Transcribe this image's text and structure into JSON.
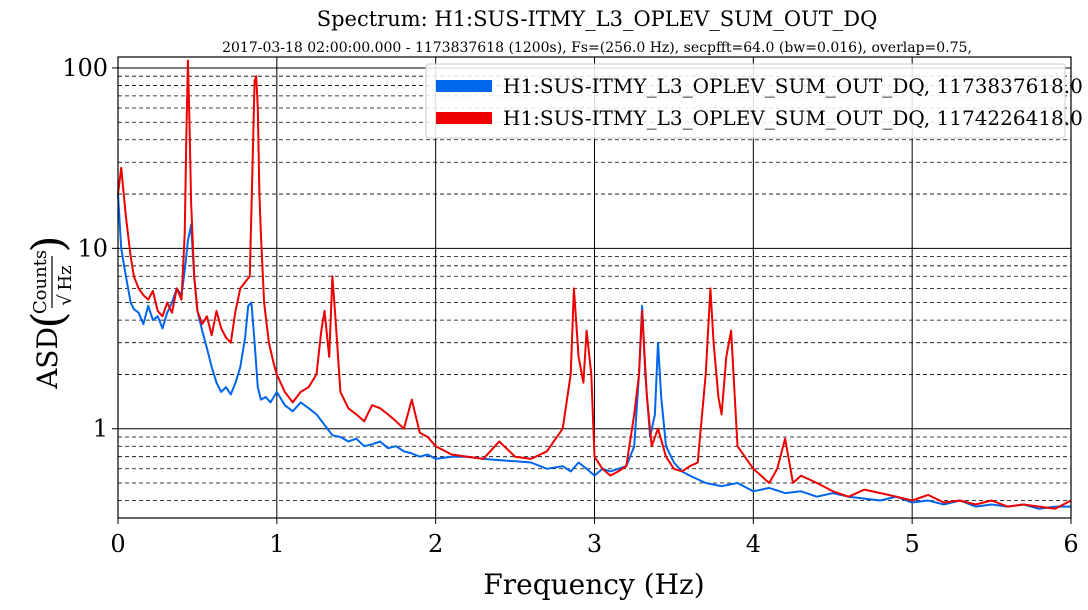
{
  "chart_data": {
    "type": "line",
    "title": "Spectrum: H1:SUS-ITMY_L3_OPLEV_SUM_OUT_DQ",
    "subtitle": "2017-03-18 02:00:00.000 - 1173837618 (1200s), Fs=(256.0 Hz), secpfft=64.0 (bw=0.016), overlap=0.75,",
    "xlabel": "Frequency (Hz)",
    "ylabel_main": "ASD",
    "ylabel_num": "Counts",
    "ylabel_den": "Hz",
    "xlim": [
      0,
      6
    ],
    "ylim": [
      0.32,
      115
    ],
    "yscale": "log",
    "grid": true,
    "legend_placement": "top-right",
    "x_ticks": [
      0,
      1,
      2,
      3,
      4,
      5,
      6
    ],
    "x_tick_labels": [
      "0",
      "1",
      "2",
      "3",
      "4",
      "5",
      "6"
    ],
    "y_ticks": [
      1,
      10,
      100
    ],
    "y_tick_labels": [
      "1",
      "10",
      "100"
    ],
    "series": [
      {
        "name": "H1:SUS-ITMY_L3_OPLEV_SUM_OUT_DQ, 1173837618.0",
        "color": "#0066ee",
        "x": [
          0,
          0.02,
          0.05,
          0.08,
          0.1,
          0.13,
          0.16,
          0.19,
          0.22,
          0.25,
          0.28,
          0.31,
          0.34,
          0.37,
          0.4,
          0.42,
          0.44,
          0.46,
          0.48,
          0.5,
          0.53,
          0.56,
          0.59,
          0.62,
          0.65,
          0.68,
          0.71,
          0.74,
          0.77,
          0.8,
          0.82,
          0.84,
          0.86,
          0.88,
          0.9,
          0.93,
          0.96,
          1.0,
          1.05,
          1.1,
          1.15,
          1.2,
          1.25,
          1.3,
          1.35,
          1.4,
          1.45,
          1.5,
          1.55,
          1.6,
          1.65,
          1.7,
          1.75,
          1.8,
          1.85,
          1.9,
          1.95,
          2.0,
          2.1,
          2.2,
          2.3,
          2.4,
          2.5,
          2.6,
          2.7,
          2.8,
          2.85,
          2.9,
          2.95,
          3.0,
          3.05,
          3.1,
          3.15,
          3.2,
          3.25,
          3.28,
          3.3,
          3.32,
          3.35,
          3.38,
          3.4,
          3.42,
          3.45,
          3.5,
          3.55,
          3.6,
          3.7,
          3.8,
          3.9,
          4.0,
          4.1,
          4.2,
          4.3,
          4.4,
          4.5,
          4.6,
          4.7,
          4.8,
          4.9,
          5.0,
          5.1,
          5.2,
          5.3,
          5.4,
          5.5,
          5.6,
          5.7,
          5.8,
          5.9,
          6.0
        ],
        "values": [
          20,
          10,
          7,
          5,
          4.6,
          4.4,
          3.8,
          4.8,
          4.0,
          4.2,
          3.6,
          4.4,
          5.0,
          6.0,
          5.5,
          7.5,
          11,
          13.5,
          7,
          4.5,
          3.5,
          2.8,
          2.2,
          1.8,
          1.6,
          1.7,
          1.55,
          1.8,
          2.2,
          3.2,
          4.8,
          5.0,
          3.0,
          1.7,
          1.45,
          1.5,
          1.4,
          1.6,
          1.35,
          1.25,
          1.4,
          1.3,
          1.2,
          1.05,
          0.92,
          0.9,
          0.85,
          0.88,
          0.8,
          0.82,
          0.85,
          0.78,
          0.8,
          0.75,
          0.73,
          0.7,
          0.72,
          0.68,
          0.7,
          0.7,
          0.68,
          0.67,
          0.66,
          0.65,
          0.6,
          0.62,
          0.58,
          0.65,
          0.6,
          0.55,
          0.6,
          0.58,
          0.6,
          0.62,
          0.8,
          2.0,
          4.8,
          2.0,
          0.9,
          1.2,
          3.0,
          1.5,
          0.8,
          0.65,
          0.58,
          0.55,
          0.5,
          0.48,
          0.5,
          0.45,
          0.47,
          0.44,
          0.45,
          0.42,
          0.44,
          0.42,
          0.41,
          0.4,
          0.42,
          0.39,
          0.4,
          0.38,
          0.4,
          0.37,
          0.38,
          0.37,
          0.38,
          0.36,
          0.37,
          0.37
        ]
      },
      {
        "name": "H1:SUS-ITMY_L3_OPLEV_SUM_OUT_DQ, 1174226418.0",
        "color": "#ee0000",
        "x": [
          0,
          0.02,
          0.05,
          0.08,
          0.1,
          0.13,
          0.16,
          0.19,
          0.22,
          0.25,
          0.28,
          0.31,
          0.34,
          0.37,
          0.4,
          0.42,
          0.43,
          0.44,
          0.45,
          0.46,
          0.48,
          0.5,
          0.53,
          0.56,
          0.59,
          0.62,
          0.65,
          0.68,
          0.71,
          0.74,
          0.77,
          0.8,
          0.83,
          0.86,
          0.87,
          0.88,
          0.89,
          0.9,
          0.92,
          0.95,
          0.98,
          1.0,
          1.05,
          1.1,
          1.15,
          1.2,
          1.25,
          1.28,
          1.3,
          1.33,
          1.35,
          1.37,
          1.4,
          1.45,
          1.5,
          1.55,
          1.6,
          1.65,
          1.7,
          1.75,
          1.8,
          1.85,
          1.9,
          1.95,
          2.0,
          2.1,
          2.2,
          2.3,
          2.4,
          2.5,
          2.6,
          2.7,
          2.8,
          2.85,
          2.87,
          2.9,
          2.93,
          2.95,
          2.98,
          3.0,
          3.05,
          3.1,
          3.15,
          3.2,
          3.25,
          3.28,
          3.3,
          3.33,
          3.36,
          3.4,
          3.45,
          3.5,
          3.55,
          3.6,
          3.65,
          3.7,
          3.73,
          3.75,
          3.78,
          3.8,
          3.83,
          3.86,
          3.9,
          4.0,
          4.1,
          4.15,
          4.2,
          4.25,
          4.3,
          4.4,
          4.5,
          4.6,
          4.7,
          4.8,
          4.9,
          5.0,
          5.1,
          5.2,
          5.3,
          5.4,
          5.5,
          5.6,
          5.7,
          5.8,
          5.9,
          6.0
        ],
        "values": [
          20,
          28,
          15,
          9,
          7,
          6,
          5.5,
          5.2,
          5.8,
          4.5,
          4.2,
          5.0,
          4.4,
          6.0,
          5.2,
          12,
          40,
          110,
          50,
          18,
          7,
          4.5,
          3.8,
          4.2,
          3.3,
          4.5,
          3.6,
          3.2,
          3.0,
          4.5,
          6.0,
          6.5,
          7.0,
          85,
          90,
          60,
          20,
          12,
          5.0,
          3.0,
          2.3,
          2.0,
          1.6,
          1.4,
          1.6,
          1.7,
          2.0,
          3.5,
          4.5,
          2.5,
          7.0,
          4.0,
          1.6,
          1.3,
          1.2,
          1.1,
          1.35,
          1.3,
          1.2,
          1.1,
          1.0,
          1.45,
          0.95,
          0.9,
          0.8,
          0.72,
          0.7,
          0.68,
          0.85,
          0.7,
          0.68,
          0.75,
          1.0,
          2.0,
          6.0,
          2.5,
          1.8,
          3.5,
          2.0,
          0.7,
          0.6,
          0.55,
          0.58,
          0.62,
          1.2,
          2.0,
          4.5,
          1.5,
          0.8,
          1.0,
          0.7,
          0.6,
          0.58,
          0.62,
          0.65,
          2.0,
          6.0,
          3.0,
          1.5,
          1.2,
          2.5,
          3.5,
          0.8,
          0.6,
          0.5,
          0.6,
          0.88,
          0.5,
          0.55,
          0.5,
          0.45,
          0.42,
          0.46,
          0.44,
          0.42,
          0.4,
          0.43,
          0.39,
          0.4,
          0.38,
          0.4,
          0.37,
          0.38,
          0.37,
          0.36,
          0.4
        ]
      }
    ]
  }
}
